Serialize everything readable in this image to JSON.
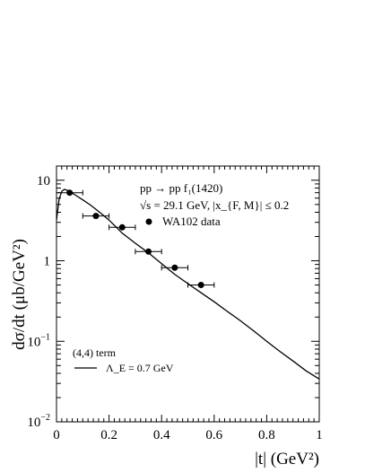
{
  "chart_data": {
    "type": "scatter",
    "title": "",
    "xlabel": "|t| (GeV²)",
    "ylabel": "dσ/dt (μb/GeV²)",
    "xlim": [
      0,
      1
    ],
    "ylim": [
      0.01,
      15
    ],
    "yscale": "log",
    "x_ticks": [
      {
        "value": 0,
        "label": "0"
      },
      {
        "value": 0.2,
        "label": "0.2"
      },
      {
        "value": 0.4,
        "label": "0.4"
      },
      {
        "value": 0.6,
        "label": "0.6"
      },
      {
        "value": 0.8,
        "label": "0.8"
      },
      {
        "value": 1,
        "label": "1"
      }
    ],
    "y_ticks": [
      {
        "value": 0.01,
        "base": "10",
        "exp": "−2"
      },
      {
        "value": 0.1,
        "base": "10",
        "exp": "−1"
      },
      {
        "value": 1,
        "base": "1",
        "exp": ""
      },
      {
        "value": 10,
        "base": "10",
        "exp": ""
      }
    ],
    "annotations": {
      "reaction": "pp → pp f₁(1420)",
      "conditions": "√s = 29.1 GeV,  |x_{F, M}| ≤ 0.2",
      "term": "(4,4) term"
    },
    "legend_placement": "top-right",
    "series": [
      {
        "name": "WA102 data",
        "kind": "points",
        "x": [
          0.05,
          0.15,
          0.25,
          0.35,
          0.45,
          0.55
        ],
        "y": [
          7.0,
          3.6,
          2.6,
          1.3,
          0.82,
          0.5
        ],
        "xerr": [
          0.05,
          0.05,
          0.05,
          0.05,
          0.05,
          0.05
        ]
      },
      {
        "name": "Λ_E = 0.7 GeV",
        "kind": "line",
        "x": [
          0.0,
          0.01,
          0.02,
          0.03,
          0.04,
          0.05,
          0.07,
          0.1,
          0.13,
          0.16,
          0.2,
          0.25,
          0.3,
          0.35,
          0.4,
          0.45,
          0.5,
          0.55,
          0.6,
          0.65,
          0.7,
          0.75,
          0.8,
          0.85,
          0.9,
          0.95,
          1.0
        ],
        "y": [
          3.2,
          5.8,
          7.3,
          7.7,
          7.5,
          7.2,
          6.6,
          5.7,
          4.9,
          4.1,
          3.2,
          2.2,
          1.65,
          1.25,
          0.92,
          0.68,
          0.52,
          0.4,
          0.31,
          0.235,
          0.18,
          0.135,
          0.1,
          0.075,
          0.057,
          0.043,
          0.034
        ]
      }
    ]
  }
}
